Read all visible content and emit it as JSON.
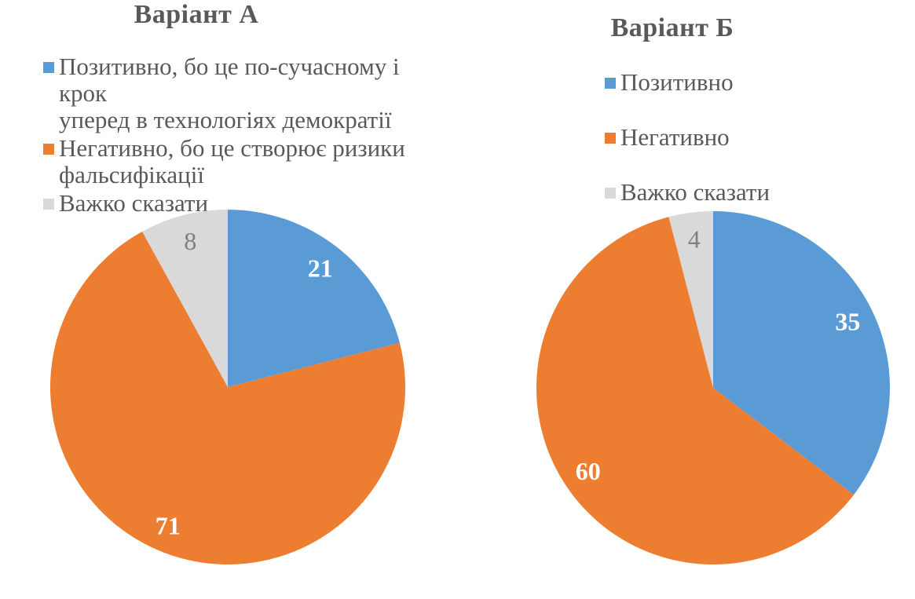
{
  "colors": {
    "positive_blue": "#5B9BD5",
    "negative_orange": "#ED7D31",
    "neutral_gray": "#D9D9D9",
    "text_gray": "#595959",
    "gray_slice_label": "#7F7F7F",
    "white_label": "#FFFFFF",
    "background": "#FFFFFF"
  },
  "chart_data": [
    {
      "type": "pie",
      "title": "Варіант А",
      "labels": [
        "Позитивно, бо це по-сучасному і крок уперед в технологіях демократії",
        "Негативно, бо це створює ризики фальсифікації",
        "Важко сказати"
      ],
      "legend_lines": [
        [
          "Позитивно, бо це по-сучасному і крок",
          "уперед в технологіях демократії"
        ],
        [
          "Негативно, бо це створює ризики",
          "фальсифікації"
        ],
        [
          "Важко сказати"
        ]
      ],
      "values": [
        21,
        71,
        8
      ],
      "data_labels": [
        "21",
        "71",
        "8"
      ],
      "colors": [
        "#5B9BD5",
        "#ED7D31",
        "#D9D9D9"
      ],
      "label_colors": [
        "#FFFFFF",
        "#FFFFFF",
        "#7F7F7F"
      ],
      "label_bold": [
        true,
        true,
        false
      ],
      "start_angle_deg": 0,
      "direction": "clockwise",
      "legend_position": "top-left",
      "label_radius_ratio": 0.85
    },
    {
      "type": "pie",
      "title": "Варіант Б",
      "labels": [
        "Позитивно",
        "Негативно",
        "Важко сказати"
      ],
      "legend_lines": [
        [
          "Позитивно"
        ],
        [
          "Негативно"
        ],
        [
          "Важко сказати"
        ]
      ],
      "values": [
        35,
        60,
        4
      ],
      "data_labels": [
        "35",
        "60",
        "4"
      ],
      "colors": [
        "#5B9BD5",
        "#ED7D31",
        "#D9D9D9"
      ],
      "label_colors": [
        "#FFFFFF",
        "#FFFFFF",
        "#7F7F7F"
      ],
      "label_bold": [
        true,
        true,
        false
      ],
      "start_angle_deg": 0,
      "direction": "clockwise",
      "legend_position": "top-center",
      "label_radius_ratio": 0.85
    }
  ]
}
